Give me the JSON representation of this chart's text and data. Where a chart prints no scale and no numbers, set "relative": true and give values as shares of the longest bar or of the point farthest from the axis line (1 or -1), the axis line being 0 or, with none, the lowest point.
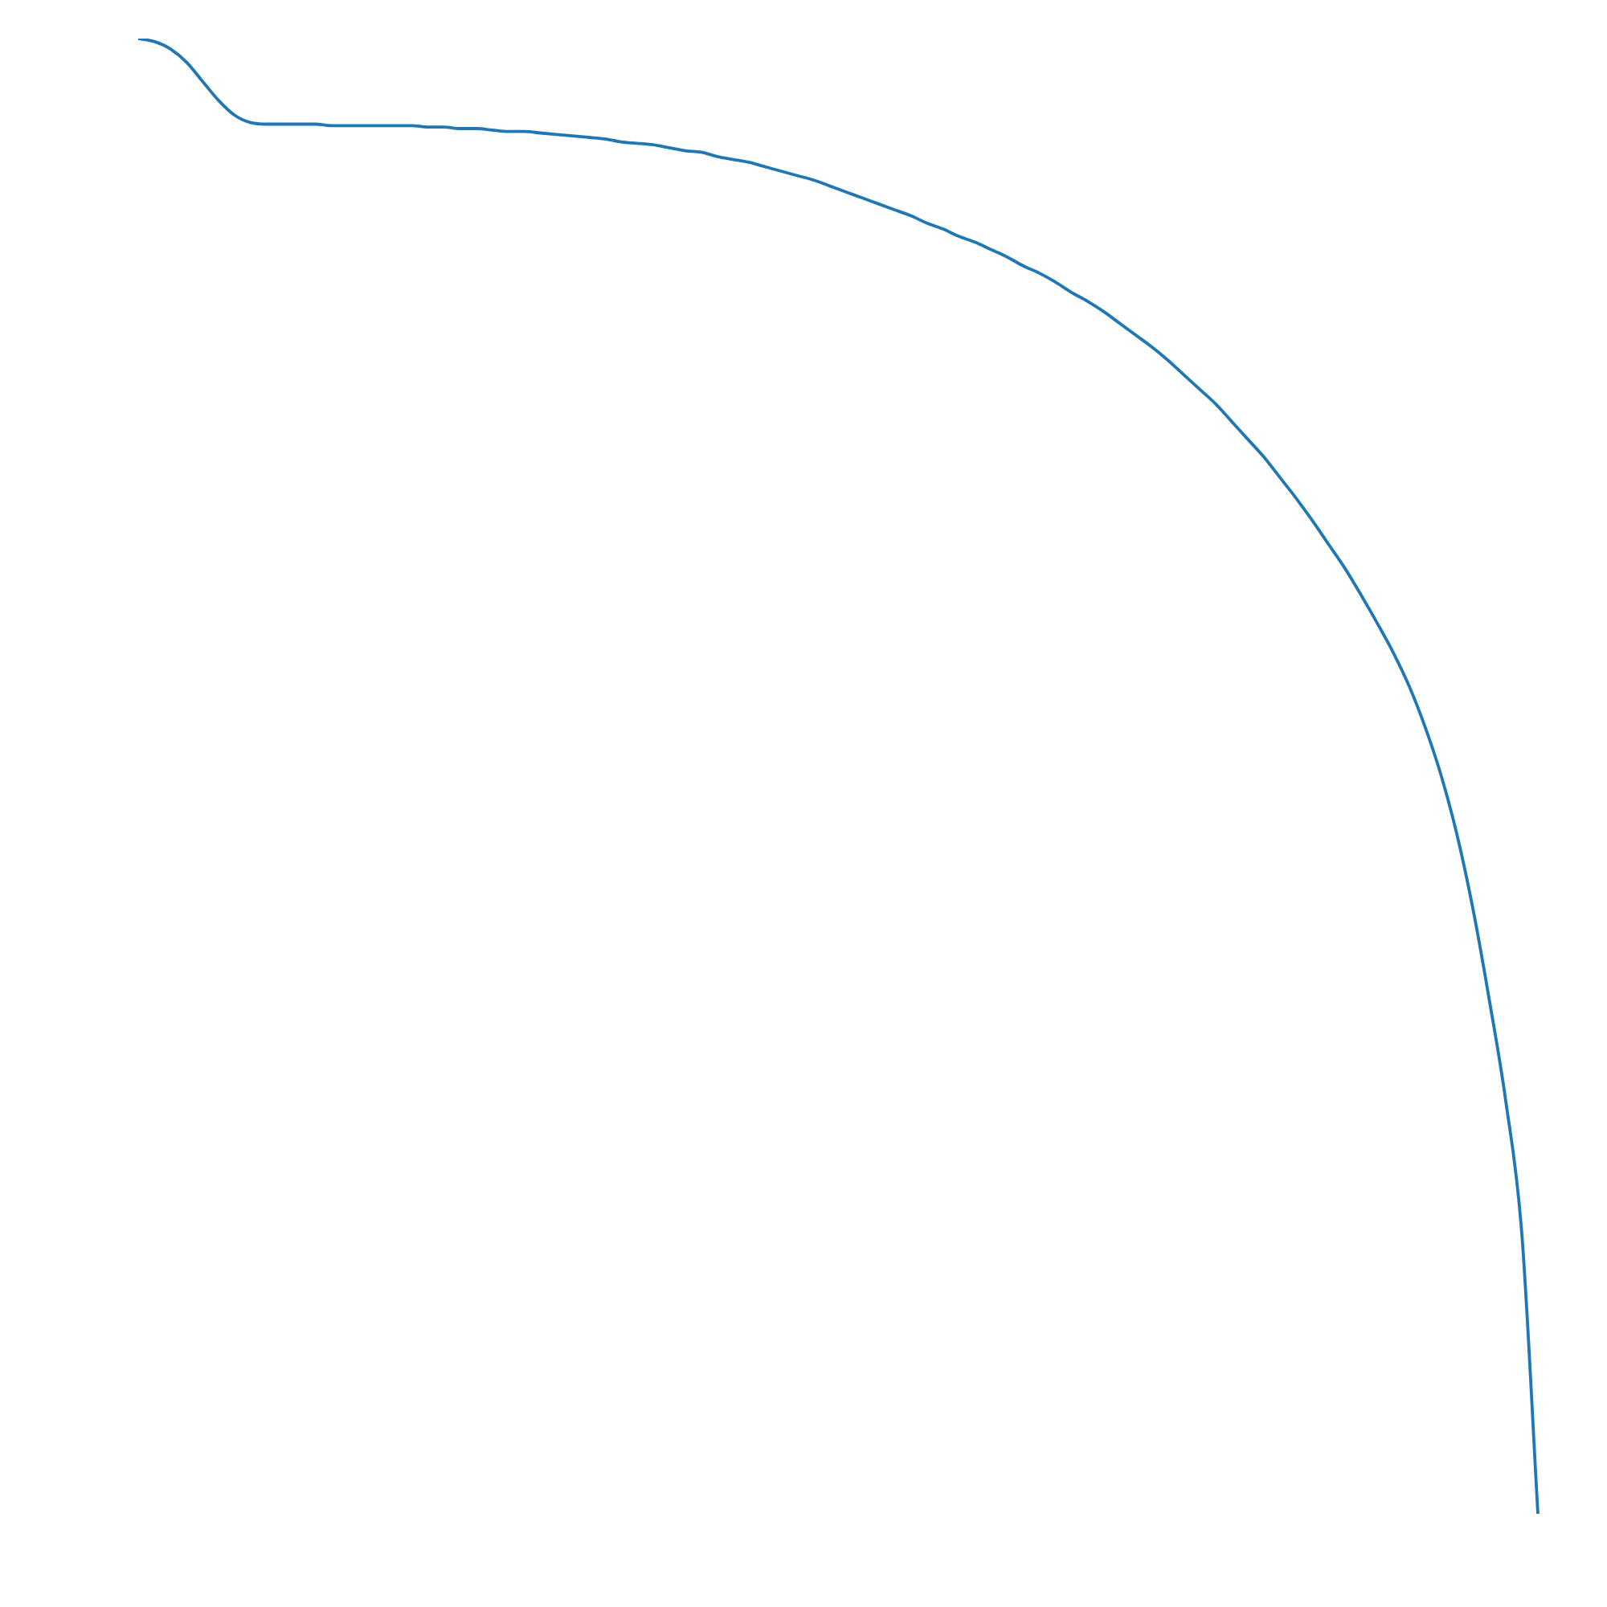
{
  "chart_data": {
    "type": "line",
    "relative": true,
    "marker": "none",
    "line_style": "solid",
    "categories": [
      null,
      null,
      null,
      null,
      null,
      null,
      null,
      null,
      null,
      null,
      null,
      null,
      null,
      null,
      null,
      null,
      null,
      null,
      null,
      null,
      null,
      null,
      null,
      null,
      null,
      null,
      null,
      null,
      null,
      null,
      null,
      null,
      null,
      null,
      null,
      null,
      null,
      null,
      null,
      null,
      null,
      null,
      null,
      null,
      null,
      null,
      null,
      null,
      null,
      null,
      null,
      null,
      null,
      null,
      null,
      null,
      null,
      null,
      null,
      null,
      null,
      null,
      null,
      null,
      null,
      null,
      null,
      null,
      null,
      null,
      null,
      null,
      null,
      null,
      null,
      null,
      null,
      null,
      null,
      null,
      null,
      null,
      null,
      null,
      null,
      null,
      null,
      null
    ],
    "series": [
      {
        "color": "#1f77b4",
        "values": [
          1,
          0.998,
          0.993,
          0.984,
          0.971,
          0.958,
          0.948,
          0.943,
          0.942,
          0.942,
          0.942,
          0.942,
          0.941,
          0.941,
          0.941,
          0.941,
          0.941,
          0.941,
          0.94,
          0.94,
          0.939,
          0.939,
          0.938,
          0.937,
          0.937,
          0.936,
          0.935,
          0.934,
          0.933,
          0.932,
          0.93,
          0.929,
          0.928,
          0.926,
          0.924,
          0.923,
          0.92,
          0.918,
          0.916,
          0.913,
          0.91,
          0.907,
          0.904,
          0.9,
          0.896,
          0.892,
          0.888,
          0.884,
          0.88,
          0.875,
          0.871,
          0.866,
          0.862,
          0.857,
          0.852,
          0.846,
          0.841,
          0.835,
          0.828,
          0.822,
          0.815,
          0.807,
          0.799,
          0.791,
          0.782,
          0.772,
          0.762,
          0.752,
          0.74,
          0.728,
          0.716,
          0.702,
          0.688,
          0.673,
          0.657,
          0.641,
          0.623,
          0.604,
          0.584,
          0.561,
          0.533,
          0.5,
          0.459,
          0.408,
          0.347,
          0.28,
          0.19,
          0
        ]
      }
    ]
  }
}
